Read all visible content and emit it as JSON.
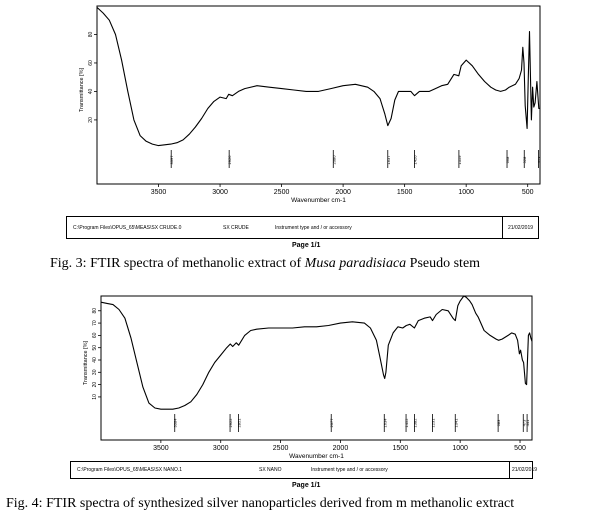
{
  "figures": [
    {
      "caption_text": "Fig. 3: FTIR spectra of methanolic extract of ",
      "caption_species": "Musa paradisiaca",
      "caption_tail": " Pseudo stem",
      "info": {
        "path": "C:\\Program Files\\OPUS_65\\MEAS\\SX CRUDE.0",
        "sample": "SX CRUDE",
        "instrument": "Instrument type and / or accessory",
        "date": "21/02/2019"
      },
      "page": "Page 1/1"
    },
    {
      "caption_text": "Fig. 4: FTIR spectra of synthesized silver nanoparticles derived from m methanolic extract",
      "info": {
        "path": "C:\\Program Files\\OPUS_65\\MEAS\\SX NANO.1",
        "sample": "SX NANO",
        "instrument": "Instrument type and / or accessory",
        "date": "21/02/2019"
      },
      "page": "Page 1/1"
    }
  ],
  "chart_data": [
    {
      "type": "line",
      "xlabel": "Wavenumber cm-1",
      "ylabel": "Transmittance [%]",
      "xlim": [
        4000,
        400
      ],
      "ylim": [
        -25,
        100
      ],
      "xticks": [
        3500,
        3000,
        2500,
        2000,
        1500,
        1000,
        500
      ],
      "yticks": [
        20,
        40,
        60,
        80
      ],
      "peaks": [
        "3397",
        "2926",
        "2080",
        "1637",
        "1420",
        "1059",
        "668",
        "528",
        "413"
      ],
      "series": [
        {
          "color": "#000000",
          "x": [
            4000,
            3950,
            3900,
            3850,
            3800,
            3750,
            3700,
            3650,
            3600,
            3550,
            3500,
            3450,
            3400,
            3350,
            3300,
            3250,
            3200,
            3150,
            3100,
            3050,
            3000,
            2950,
            2930,
            2900,
            2850,
            2800,
            2700,
            2600,
            2500,
            2400,
            2300,
            2200,
            2100,
            2000,
            1900,
            1800,
            1750,
            1700,
            1660,
            1637,
            1610,
            1580,
            1550,
            1500,
            1450,
            1420,
            1380,
            1300,
            1250,
            1200,
            1150,
            1100,
            1060,
            1040,
            1000,
            950,
            900,
            850,
            800,
            760,
            720,
            680,
            650,
            600,
            570,
            550,
            540,
            530,
            520,
            505,
            495,
            485,
            470,
            460,
            450,
            440,
            425,
            410,
            400
          ],
          "y": [
            99,
            95,
            90,
            80,
            62,
            40,
            20,
            9,
            5,
            3,
            2,
            2.5,
            3,
            4,
            6,
            10,
            15,
            21,
            28,
            33,
            36,
            35,
            38,
            37,
            40,
            42,
            44,
            43,
            42,
            41,
            40,
            40,
            42,
            44,
            45,
            43,
            40,
            35,
            24,
            16,
            21,
            34,
            40,
            40,
            40,
            37,
            40,
            40,
            42,
            44,
            45,
            52,
            51,
            58,
            62,
            58,
            52,
            47,
            43,
            41,
            40,
            41,
            43,
            45,
            49,
            55,
            71,
            60,
            30,
            14,
            50,
            82,
            20,
            43,
            29,
            32,
            47,
            28,
            28
          ]
        }
      ]
    },
    {
      "type": "line",
      "xlabel": "Wavenumber cm-1",
      "ylabel": "Transmittance [%]",
      "xlim": [
        4000,
        400
      ],
      "ylim": [
        -25,
        92
      ],
      "xticks": [
        3500,
        3000,
        2500,
        2000,
        1500,
        1000,
        500
      ],
      "yticks": [
        10,
        20,
        30,
        40,
        50,
        60,
        70,
        80
      ],
      "peaks": [
        "3384",
        "2922",
        "2851",
        "2077",
        "1634",
        "1452",
        "1382",
        "1231",
        "1041",
        "683",
        "473",
        "441"
      ],
      "series": [
        {
          "color": "#000000",
          "x": [
            4000,
            3950,
            3900,
            3850,
            3800,
            3750,
            3700,
            3650,
            3600,
            3550,
            3500,
            3450,
            3400,
            3350,
            3300,
            3250,
            3200,
            3150,
            3100,
            3050,
            3000,
            2950,
            2920,
            2900,
            2870,
            2850,
            2800,
            2750,
            2700,
            2600,
            2500,
            2400,
            2300,
            2200,
            2100,
            2000,
            1900,
            1800,
            1750,
            1700,
            1670,
            1640,
            1630,
            1620,
            1600,
            1560,
            1520,
            1480,
            1450,
            1420,
            1382,
            1350,
            1300,
            1250,
            1231,
            1200,
            1150,
            1100,
            1060,
            1041,
            1020,
            1000,
            970,
            950,
            920,
            900,
            870,
            850,
            800,
            750,
            700,
            680,
            650,
            600,
            570,
            540,
            520,
            505,
            495,
            480,
            470,
            455,
            445,
            430,
            420,
            410,
            400
          ],
          "y": [
            87,
            86,
            85,
            81,
            74,
            58,
            38,
            18,
            5,
            1,
            0,
            0,
            0,
            1,
            3,
            6,
            12,
            20,
            30,
            38,
            44,
            50,
            53,
            51,
            54,
            52,
            60,
            64,
            65,
            66,
            66,
            66,
            67,
            67,
            68,
            70,
            71,
            70,
            66,
            56,
            42,
            28,
            25,
            30,
            52,
            62,
            67,
            66,
            68,
            69,
            66,
            72,
            74,
            75,
            72,
            77,
            81,
            80,
            74,
            72,
            84,
            88,
            92,
            91,
            88,
            85,
            78,
            75,
            64,
            60,
            57,
            56,
            57,
            60,
            62,
            61,
            56,
            45,
            48,
            40,
            38,
            21,
            20,
            60,
            62,
            58,
            55
          ]
        }
      ]
    }
  ]
}
